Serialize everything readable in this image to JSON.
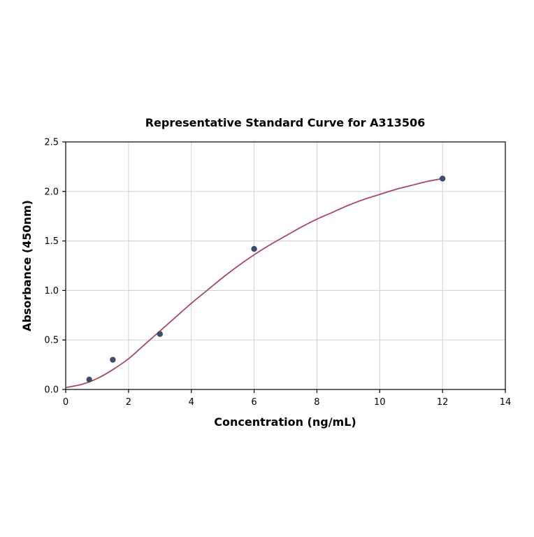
{
  "figure": {
    "background": "#ffffff"
  },
  "chart_data": {
    "type": "scatter",
    "title": "Representative Standard Curve for A313506",
    "xlabel": "Concentration (ng/mL)",
    "ylabel": "Absorbance (450nm)",
    "xlim": [
      0,
      14
    ],
    "ylim": [
      0,
      2.5
    ],
    "x_tick_labels": [
      "0",
      "2",
      "4",
      "6",
      "8",
      "10",
      "12",
      "14"
    ],
    "x_tick_values": [
      0,
      2,
      4,
      6,
      8,
      10,
      12,
      14
    ],
    "y_tick_labels": [
      "0.0",
      "0.5",
      "1.0",
      "1.5",
      "2.0",
      "2.5"
    ],
    "y_tick_values": [
      0,
      0.5,
      1.0,
      1.5,
      2.0,
      2.5
    ],
    "grid": true,
    "legend": "none",
    "colors": {
      "points": "#3b4c70",
      "fit_line": "#aa4a5e",
      "grid": "#cccccc",
      "axis": "#000000",
      "background": "#ffffff"
    },
    "series": [
      {
        "name": "standards",
        "type": "scatter",
        "x": [
          0.75,
          1.5,
          3,
          6,
          12
        ],
        "y": [
          0.1,
          0.3,
          0.56,
          1.42,
          2.13
        ]
      },
      {
        "name": "4pl-fit-curve",
        "type": "line",
        "x": [
          0,
          0.5,
          1,
          1.5,
          2,
          2.5,
          3,
          3.5,
          4,
          4.5,
          5,
          5.5,
          6,
          6.5,
          7,
          7.5,
          8,
          8.5,
          9,
          9.5,
          10,
          10.5,
          11,
          11.5,
          12
        ],
        "y": [
          0.02,
          0.05,
          0.11,
          0.2,
          0.31,
          0.45,
          0.59,
          0.73,
          0.87,
          1.0,
          1.13,
          1.25,
          1.36,
          1.46,
          1.55,
          1.64,
          1.72,
          1.79,
          1.86,
          1.92,
          1.97,
          2.02,
          2.06,
          2.1,
          2.13
        ]
      }
    ]
  }
}
